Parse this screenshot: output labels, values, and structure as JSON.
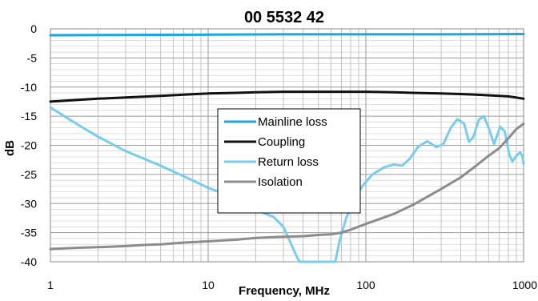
{
  "chart_data": {
    "type": "line",
    "title": "00 5532 42",
    "xlabel": "Frequency, MHz",
    "ylabel": "dB",
    "x_scale": "log",
    "xlim": [
      1,
      1000
    ],
    "ylim": [
      -40,
      0
    ],
    "x_ticks": [
      "1",
      "10",
      "100",
      "1000"
    ],
    "y_ticks": [
      "0",
      "-5",
      "-10",
      "-15",
      "-20",
      "-25",
      "-30",
      "-35",
      "-40"
    ],
    "grid": true,
    "legend_position": "center",
    "series": [
      {
        "name": "Mainline loss",
        "color": "#1ba6e0",
        "points": [
          [
            1,
            -1.1
          ],
          [
            3,
            -1.05
          ],
          [
            10,
            -1.0
          ],
          [
            30,
            -0.95
          ],
          [
            100,
            -0.95
          ],
          [
            300,
            -0.95
          ],
          [
            1000,
            -0.9
          ]
        ]
      },
      {
        "name": "Coupling",
        "color": "#111111",
        "points": [
          [
            1,
            -12.5
          ],
          [
            1.5,
            -12.2
          ],
          [
            2,
            -12.0
          ],
          [
            3,
            -11.8
          ],
          [
            5,
            -11.5
          ],
          [
            7,
            -11.3
          ],
          [
            10,
            -11.1
          ],
          [
            15,
            -11.0
          ],
          [
            20,
            -10.9
          ],
          [
            30,
            -10.8
          ],
          [
            50,
            -10.8
          ],
          [
            100,
            -10.8
          ],
          [
            150,
            -10.9
          ],
          [
            200,
            -11.0
          ],
          [
            300,
            -11.1
          ],
          [
            400,
            -11.2
          ],
          [
            500,
            -11.3
          ],
          [
            700,
            -11.5
          ],
          [
            800,
            -11.6
          ],
          [
            900,
            -11.8
          ],
          [
            1000,
            -12.0
          ]
        ]
      },
      {
        "name": "Return loss",
        "color": "#78cdee",
        "points": [
          [
            1,
            -13.5
          ],
          [
            1.5,
            -16.5
          ],
          [
            2,
            -18.5
          ],
          [
            3,
            -21
          ],
          [
            5,
            -23.5
          ],
          [
            7,
            -25.3
          ],
          [
            10,
            -27.3
          ],
          [
            14,
            -28.8
          ],
          [
            18,
            -30.5
          ],
          [
            22,
            -31.5
          ],
          [
            26,
            -32.3
          ],
          [
            30,
            -34
          ],
          [
            33,
            -36.5
          ],
          [
            36,
            -38.8
          ],
          [
            38,
            -40
          ],
          [
            64,
            -40
          ],
          [
            68,
            -36.5
          ],
          [
            75,
            -32.5
          ],
          [
            85,
            -29.3
          ],
          [
            95,
            -27
          ],
          [
            110,
            -25
          ],
          [
            130,
            -23.8
          ],
          [
            150,
            -23.3
          ],
          [
            170,
            -23.5
          ],
          [
            190,
            -22.3
          ],
          [
            215,
            -20.2
          ],
          [
            245,
            -19.3
          ],
          [
            280,
            -20.3
          ],
          [
            310,
            -19.8
          ],
          [
            345,
            -17
          ],
          [
            380,
            -15.5
          ],
          [
            420,
            -16.3
          ],
          [
            450,
            -19.4
          ],
          [
            480,
            -18.6
          ],
          [
            520,
            -15.6
          ],
          [
            560,
            -15.0
          ],
          [
            600,
            -17.0
          ],
          [
            650,
            -19.8
          ],
          [
            710,
            -16.8
          ],
          [
            760,
            -17.6
          ],
          [
            810,
            -21.5
          ],
          [
            850,
            -22.8
          ],
          [
            900,
            -21.8
          ],
          [
            950,
            -21.2
          ],
          [
            980,
            -21.8
          ],
          [
            1000,
            -23.2
          ]
        ]
      },
      {
        "name": "Isolation",
        "color": "#8c8c8c",
        "points": [
          [
            1,
            -37.8
          ],
          [
            1.5,
            -37.6
          ],
          [
            2,
            -37.5
          ],
          [
            3,
            -37.3
          ],
          [
            4,
            -37.1
          ],
          [
            5,
            -37.0
          ],
          [
            7,
            -36.7
          ],
          [
            10,
            -36.5
          ],
          [
            15,
            -36.2
          ],
          [
            20,
            -35.9
          ],
          [
            30,
            -35.7
          ],
          [
            40,
            -35.6
          ],
          [
            50,
            -35.4
          ],
          [
            60,
            -35.3
          ],
          [
            70,
            -35.0
          ],
          [
            80,
            -34.5
          ],
          [
            100,
            -33.5
          ],
          [
            150,
            -31.8
          ],
          [
            200,
            -30.2
          ],
          [
            300,
            -27.5
          ],
          [
            400,
            -25.5
          ],
          [
            500,
            -23.5
          ],
          [
            600,
            -21.8
          ],
          [
            700,
            -20.5
          ],
          [
            800,
            -18.8
          ],
          [
            900,
            -17.2
          ],
          [
            1000,
            -16.3
          ]
        ]
      }
    ]
  }
}
